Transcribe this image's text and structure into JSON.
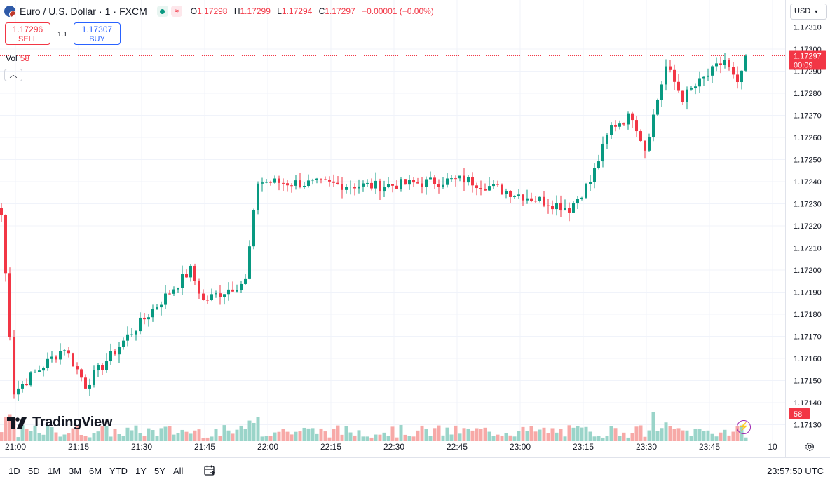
{
  "symbol": {
    "name": "Euro / U.S. Dollar",
    "interval": "1",
    "source": "FXCM",
    "separator": "·"
  },
  "ohlc": {
    "o_label": "O",
    "o": "1.17298",
    "h_label": "H",
    "h": "1.17299",
    "l_label": "L",
    "l": "1.17294",
    "c_label": "C",
    "c": "1.17297",
    "change": "−0.00001 (−0.00%)"
  },
  "trade": {
    "sell_price": "1.17296",
    "sell_label": "SELL",
    "spread": "1.1",
    "buy_price": "1.17307",
    "buy_label": "BUY"
  },
  "volume": {
    "label": "Vol",
    "value": "58"
  },
  "currency_select": "USD",
  "price_tag": {
    "price": "1.17297",
    "countdown": "00:09"
  },
  "volume_tag": "58",
  "brand": "TradingView",
  "timeframes": [
    "1D",
    "5D",
    "1M",
    "3M",
    "6M",
    "YTD",
    "1Y",
    "5Y",
    "All"
  ],
  "clock": "23:57:50 UTC",
  "colors": {
    "up": "#089981",
    "down": "#f23645",
    "vol_up": "#9ad4c9",
    "vol_down": "#f7a9a7",
    "buy": "#2962ff",
    "accent": "#9c27b0"
  },
  "icons": [
    "euro-flag-icon",
    "market-status-icon",
    "collapse-chevron-icon",
    "calendar-icon",
    "gear-icon",
    "lightning-icon"
  ],
  "chart_data": {
    "type": "candlestick",
    "title": "Euro / U.S. Dollar · 1 · FXCM",
    "y_ticks": [
      "1.17310",
      "1.17300",
      "1.17290",
      "1.17280",
      "1.17270",
      "1.17260",
      "1.17250",
      "1.17240",
      "1.17230",
      "1.17220",
      "1.17210",
      "1.17200",
      "1.17190",
      "1.17180",
      "1.17170",
      "1.17160",
      "1.17150",
      "1.17140",
      "1.17130"
    ],
    "x_ticks": [
      "21:00",
      "21:15",
      "21:30",
      "21:45",
      "22:00",
      "22:15",
      "22:30",
      "22:45",
      "23:00",
      "23:15",
      "23:30",
      "23:45",
      "10"
    ],
    "ylim": [
      1.17128,
      1.17315
    ],
    "last_price": 1.17297,
    "grid": true,
    "key_points": [
      {
        "time": "21:00",
        "close": 1.17225
      },
      {
        "time": "21:03",
        "close": 1.17145
      },
      {
        "time": "21:15",
        "close": 1.17165
      },
      {
        "time": "21:20",
        "close": 1.17148
      },
      {
        "time": "21:30",
        "close": 1.1717
      },
      {
        "time": "21:40",
        "close": 1.1719
      },
      {
        "time": "21:45",
        "close": 1.172
      },
      {
        "time": "21:48",
        "close": 1.17186
      },
      {
        "time": "21:58",
        "close": 1.17195
      },
      {
        "time": "22:01",
        "close": 1.1724
      },
      {
        "time": "22:30",
        "close": 1.17238
      },
      {
        "time": "22:50",
        "close": 1.17241
      },
      {
        "time": "23:15",
        "close": 1.17228
      },
      {
        "time": "23:20",
        "close": 1.1724
      },
      {
        "time": "23:25",
        "close": 1.17265
      },
      {
        "time": "23:30",
        "close": 1.1727
      },
      {
        "time": "23:33",
        "close": 1.17255
      },
      {
        "time": "23:38",
        "close": 1.17292
      },
      {
        "time": "23:42",
        "close": 1.17278
      },
      {
        "time": "23:52",
        "close": 1.17295
      },
      {
        "time": "23:55",
        "close": 1.17283
      },
      {
        "time": "23:57",
        "close": 1.17297
      }
    ]
  }
}
